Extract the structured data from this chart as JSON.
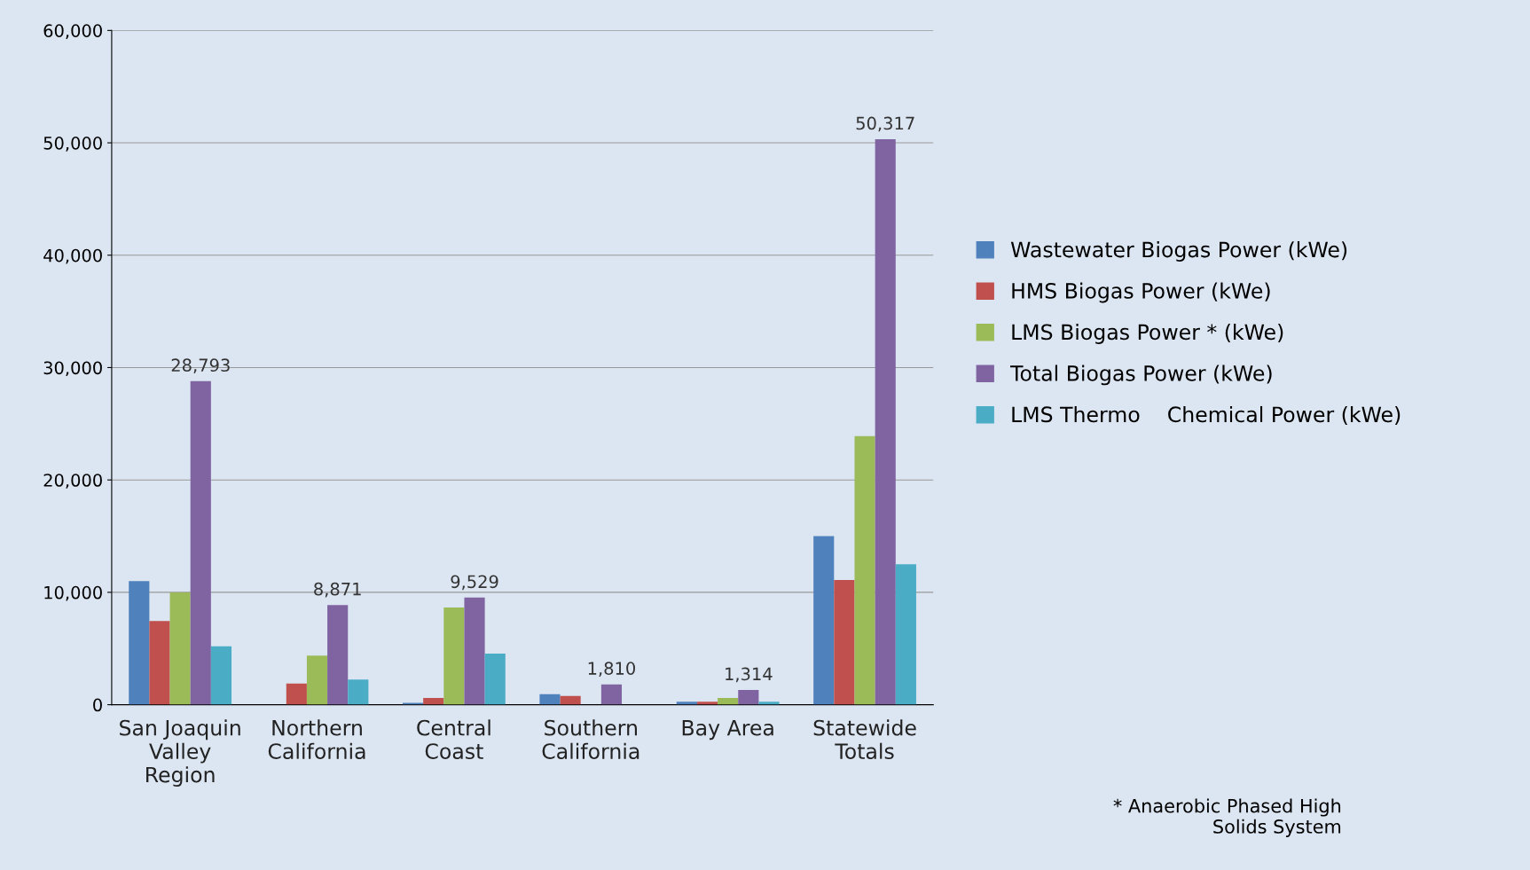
{
  "chart_data": {
    "type": "bar",
    "categories": [
      "San Joaquin\nValley\nRegion",
      "Northern\nCalifornia",
      "Central\nCoast",
      "Southern\nCalifornia",
      "Bay Area",
      "Statewide\nTotals"
    ],
    "series": [
      {
        "name": "Wastewater Biogas Power (kWe)",
        "color": "#4f81bd",
        "values": [
          11000,
          0,
          170,
          940,
          260,
          15000
        ]
      },
      {
        "name": "HMS Biogas Power (kWe)",
        "color": "#c0504d",
        "values": [
          7450,
          1880,
          600,
          770,
          260,
          11100
        ]
      },
      {
        "name": "LMS Biogas Power * (kWe)",
        "color": "#9bbb59",
        "values": [
          10000,
          4370,
          8650,
          0,
          600,
          23900
        ]
      },
      {
        "name": "Total Biogas Power (kWe)",
        "color": "#8064a2",
        "values": [
          28793,
          8871,
          9529,
          1810,
          1314,
          50317
        ],
        "value_labels": [
          "28,793",
          "8,871",
          "9,529",
          "1,810",
          "1,314",
          "50,317"
        ]
      },
      {
        "name": "LMS Thermo    Chemical Power (kWe)",
        "color": "#4bacc6",
        "values": [
          5200,
          2230,
          4540,
          0,
          260,
          12500
        ]
      }
    ],
    "ylim": [
      0,
      60000
    ],
    "yticks": [
      {
        "value": 0,
        "label": "0"
      },
      {
        "value": 10000,
        "label": "10,000"
      },
      {
        "value": 20000,
        "label": "20,000"
      },
      {
        "value": 30000,
        "label": "30,000"
      },
      {
        "value": 40000,
        "label": "40,000"
      },
      {
        "value": 50000,
        "label": "50,000"
      },
      {
        "value": 60000,
        "label": "60,000"
      }
    ],
    "grid": "y",
    "legend": "right",
    "annotations": [
      "* Anaerobic Phased High\nSolids System"
    ]
  }
}
